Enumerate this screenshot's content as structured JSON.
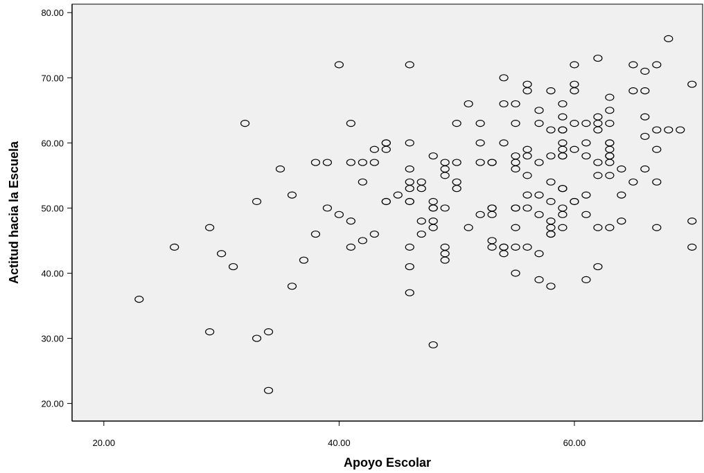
{
  "chart_data": {
    "type": "scatter",
    "title": "",
    "xlabel": "Apoyo Escolar",
    "ylabel": "Actitud hacia la Escuela",
    "xlim": [
      17.3,
      70.9
    ],
    "ylim": [
      17.3,
      81.3
    ],
    "x_ticks": [
      20,
      40,
      60
    ],
    "y_ticks": [
      20,
      30,
      40,
      50,
      60,
      70,
      80
    ],
    "x_tick_labels": [
      "20.00",
      "40.00",
      "60.00"
    ],
    "y_tick_labels": [
      "20.00",
      "30.00",
      "40.00",
      "50.00",
      "60.00",
      "70.00",
      "80.00"
    ],
    "grid": false,
    "plot_background": "#f0f0f0",
    "marker": "open-circle",
    "points": [
      [
        23,
        36
      ],
      [
        26,
        44
      ],
      [
        29,
        47
      ],
      [
        29,
        31
      ],
      [
        30,
        43
      ],
      [
        31,
        41
      ],
      [
        32,
        63
      ],
      [
        33,
        51
      ],
      [
        33,
        30
      ],
      [
        34,
        31
      ],
      [
        34,
        22
      ],
      [
        35,
        56
      ],
      [
        36,
        52
      ],
      [
        36,
        38
      ],
      [
        37,
        42
      ],
      [
        38,
        57
      ],
      [
        38,
        46
      ],
      [
        39,
        57
      ],
      [
        39,
        50
      ],
      [
        40,
        72
      ],
      [
        40,
        49
      ],
      [
        41,
        63
      ],
      [
        41,
        57
      ],
      [
        41,
        48
      ],
      [
        41,
        44
      ],
      [
        42,
        57
      ],
      [
        42,
        54
      ],
      [
        42,
        45
      ],
      [
        43,
        59
      ],
      [
        43,
        57
      ],
      [
        43,
        46
      ],
      [
        44,
        60
      ],
      [
        44,
        60
      ],
      [
        44,
        59
      ],
      [
        44,
        51
      ],
      [
        44,
        51
      ],
      [
        45,
        52
      ],
      [
        46,
        72
      ],
      [
        46,
        60
      ],
      [
        46,
        56
      ],
      [
        46,
        54
      ],
      [
        46,
        53
      ],
      [
        46,
        51
      ],
      [
        46,
        51
      ],
      [
        46,
        44
      ],
      [
        46,
        41
      ],
      [
        46,
        37
      ],
      [
        47,
        54
      ],
      [
        47,
        53
      ],
      [
        47,
        48
      ],
      [
        47,
        46
      ],
      [
        48,
        58
      ],
      [
        48,
        51
      ],
      [
        48,
        50
      ],
      [
        48,
        50
      ],
      [
        48,
        48
      ],
      [
        48,
        47
      ],
      [
        48,
        29
      ],
      [
        49,
        57
      ],
      [
        49,
        56
      ],
      [
        49,
        55
      ],
      [
        49,
        50
      ],
      [
        49,
        44
      ],
      [
        49,
        43
      ],
      [
        49,
        42
      ],
      [
        50,
        63
      ],
      [
        50,
        57
      ],
      [
        50,
        54
      ],
      [
        50,
        53
      ],
      [
        51,
        66
      ],
      [
        51,
        47
      ],
      [
        52,
        63
      ],
      [
        52,
        60
      ],
      [
        52,
        57
      ],
      [
        52,
        49
      ],
      [
        53,
        57
      ],
      [
        53,
        57
      ],
      [
        53,
        50
      ],
      [
        53,
        50
      ],
      [
        53,
        49
      ],
      [
        53,
        45
      ],
      [
        53,
        44
      ],
      [
        54,
        70
      ],
      [
        54,
        66
      ],
      [
        54,
        60
      ],
      [
        54,
        44
      ],
      [
        54,
        44
      ],
      [
        54,
        43
      ],
      [
        55,
        66
      ],
      [
        55,
        63
      ],
      [
        55,
        58
      ],
      [
        55,
        57
      ],
      [
        55,
        56
      ],
      [
        55,
        50
      ],
      [
        55,
        50
      ],
      [
        55,
        47
      ],
      [
        55,
        44
      ],
      [
        55,
        40
      ],
      [
        56,
        69
      ],
      [
        56,
        68
      ],
      [
        56,
        59
      ],
      [
        56,
        58
      ],
      [
        56,
        55
      ],
      [
        56,
        52
      ],
      [
        56,
        50
      ],
      [
        56,
        44
      ],
      [
        57,
        65
      ],
      [
        57,
        63
      ],
      [
        57,
        57
      ],
      [
        57,
        52
      ],
      [
        57,
        49
      ],
      [
        57,
        43
      ],
      [
        57,
        39
      ],
      [
        58,
        68
      ],
      [
        58,
        62
      ],
      [
        58,
        58
      ],
      [
        58,
        54
      ],
      [
        58,
        51
      ],
      [
        58,
        48
      ],
      [
        58,
        47
      ],
      [
        58,
        46
      ],
      [
        58,
        46
      ],
      [
        58,
        38
      ],
      [
        59,
        66
      ],
      [
        59,
        64
      ],
      [
        59,
        62
      ],
      [
        59,
        62
      ],
      [
        59,
        60
      ],
      [
        59,
        59
      ],
      [
        59,
        58
      ],
      [
        59,
        58
      ],
      [
        59,
        53
      ],
      [
        59,
        53
      ],
      [
        59,
        50
      ],
      [
        59,
        49
      ],
      [
        59,
        47
      ],
      [
        60,
        72
      ],
      [
        60,
        69
      ],
      [
        60,
        68
      ],
      [
        60,
        63
      ],
      [
        60,
        59
      ],
      [
        60,
        51
      ],
      [
        60,
        51
      ],
      [
        61,
        63
      ],
      [
        61,
        60
      ],
      [
        61,
        58
      ],
      [
        61,
        52
      ],
      [
        61,
        49
      ],
      [
        61,
        39
      ],
      [
        62,
        73
      ],
      [
        62,
        64
      ],
      [
        62,
        63
      ],
      [
        62,
        62
      ],
      [
        62,
        57
      ],
      [
        62,
        55
      ],
      [
        62,
        47
      ],
      [
        62,
        41
      ],
      [
        63,
        67
      ],
      [
        63,
        65
      ],
      [
        63,
        63
      ],
      [
        63,
        60
      ],
      [
        63,
        60
      ],
      [
        63,
        59
      ],
      [
        63,
        58
      ],
      [
        63,
        58
      ],
      [
        63,
        57
      ],
      [
        63,
        55
      ],
      [
        63,
        47
      ],
      [
        64,
        56
      ],
      [
        64,
        52
      ],
      [
        64,
        48
      ],
      [
        65,
        72
      ],
      [
        65,
        68
      ],
      [
        65,
        54
      ],
      [
        66,
        71
      ],
      [
        66,
        68
      ],
      [
        66,
        64
      ],
      [
        66,
        61
      ],
      [
        66,
        56
      ],
      [
        67,
        72
      ],
      [
        67,
        62
      ],
      [
        67,
        59
      ],
      [
        67,
        54
      ],
      [
        67,
        47
      ],
      [
        68,
        76
      ],
      [
        68,
        62
      ],
      [
        69,
        62
      ],
      [
        70,
        69
      ],
      [
        70,
        48
      ],
      [
        70,
        44
      ]
    ]
  }
}
